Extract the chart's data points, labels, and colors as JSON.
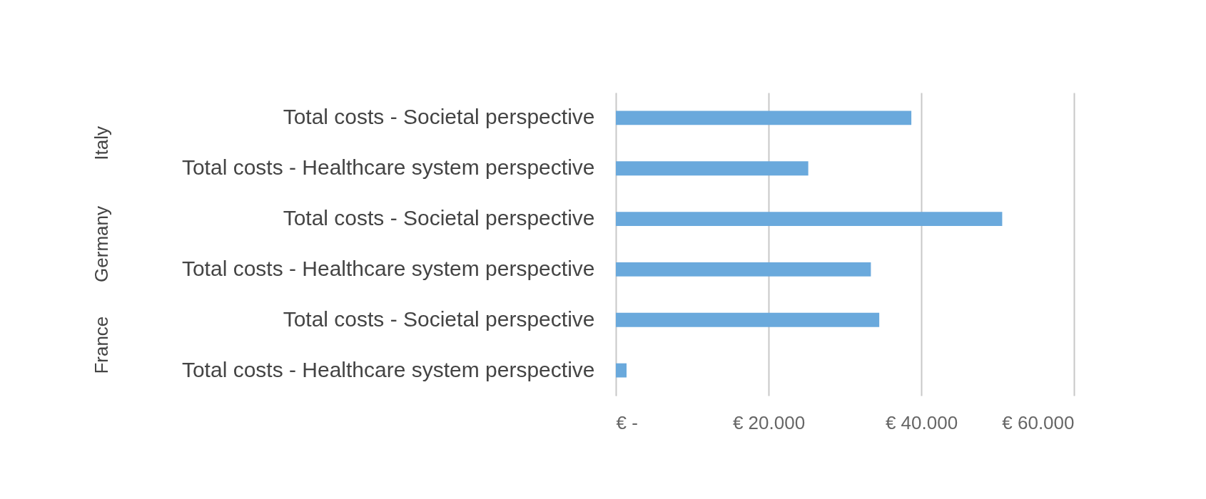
{
  "chart_data": {
    "type": "bar",
    "orientation": "horizontal",
    "categories": [
      "Total costs - Societal perspective",
      "Total costs - Healthcare system perspective",
      "Total costs - Societal perspective",
      "Total costs - Healthcare system perspective",
      "Total costs - Societal perspective",
      "Total costs - Healthcare system perspective"
    ],
    "values": [
      38700,
      25200,
      50600,
      33400,
      34500,
      1400
    ],
    "color": "#6aa9dc",
    "annotations": [
      "Italy",
      "Germany",
      "France"
    ],
    "xlim": [
      0,
      60000
    ],
    "xticks": [
      {
        "value": 0,
        "label": "€ -"
      },
      {
        "value": 20000,
        "label": "€ 20.000"
      },
      {
        "value": 40000,
        "label": "€ 40.000"
      },
      {
        "value": 60000,
        "label": "€ 60.000"
      }
    ],
    "grid": "x"
  }
}
